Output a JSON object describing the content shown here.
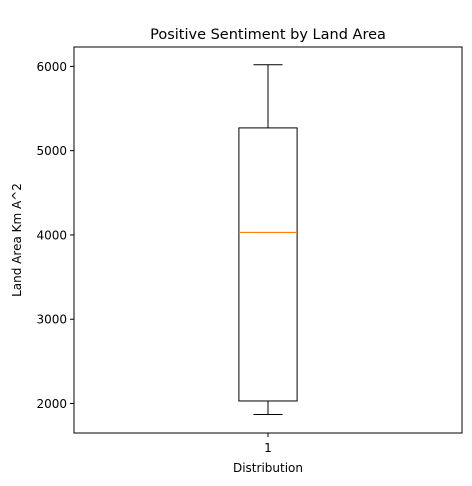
{
  "chart_data": {
    "type": "box",
    "title": "Positive Sentiment by Land Area",
    "xlabel": "Distribution",
    "ylabel": "Land Area Km A^2",
    "categories": [
      "1"
    ],
    "ylim": [
      1650,
      6230
    ],
    "yticks": [
      {
        "value": 2000,
        "label": "2000"
      },
      {
        "value": 3000,
        "label": "3000"
      },
      {
        "value": 4000,
        "label": "4000"
      },
      {
        "value": 5000,
        "label": "5000"
      },
      {
        "value": 6000,
        "label": "6000"
      }
    ],
    "boxes": [
      {
        "category": "1",
        "whisker_low": 1870,
        "q1": 2030,
        "median": 4030,
        "q3": 5270,
        "whisker_high": 6020
      }
    ],
    "grid": false,
    "colors": {
      "box": "#000000",
      "median": "#ff7f0e"
    }
  }
}
